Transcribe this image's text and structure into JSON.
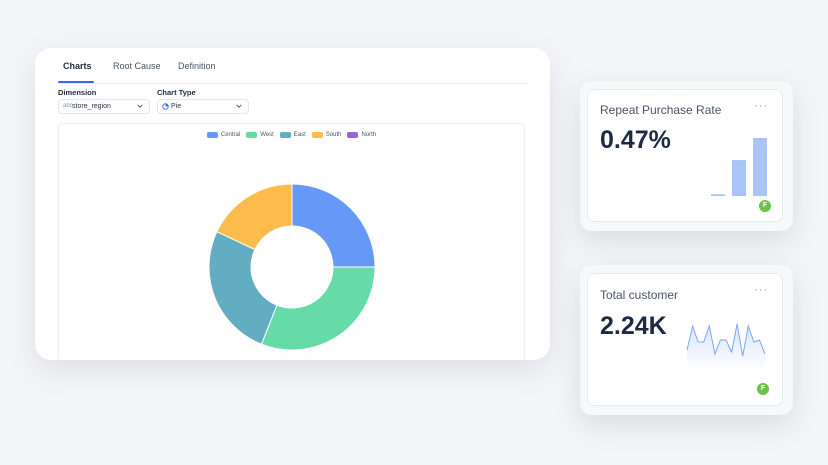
{
  "tabs": [
    {
      "label": "Charts",
      "active": true
    },
    {
      "label": "Root Cause",
      "active": false
    },
    {
      "label": "Definition",
      "active": false
    }
  ],
  "dimension": {
    "label": "Dimension",
    "value": "store_region",
    "icon": "abc-type-icon"
  },
  "chart_type": {
    "label": "Chart Type",
    "value": "Pie",
    "icon": "pie-chart-icon"
  },
  "chart_data": {
    "type": "pie",
    "donut": true,
    "legend_position": "top-center",
    "categories": [
      "Central",
      "West",
      "East",
      "South",
      "North"
    ],
    "values": [
      25,
      31,
      26,
      18,
      0
    ],
    "colors": [
      "#6699f7",
      "#66dba8",
      "#63adc3",
      "#fcbb4a",
      "#9c63d9"
    ]
  },
  "kpis": {
    "repeat": {
      "title": "Repeat Purchase Rate",
      "value": "0.47%",
      "more": "···",
      "badge": "F",
      "bars": [
        0.03,
        0.62,
        1.0
      ]
    },
    "customers": {
      "title": "Total customer",
      "value": "2.24K",
      "more": "···",
      "badge": "F",
      "spark": [
        0.25,
        0.85,
        0.45,
        0.45,
        0.85,
        0.15,
        0.5,
        0.5,
        0.2,
        0.9,
        0.1,
        0.85,
        0.45,
        0.5,
        0.15
      ]
    }
  }
}
